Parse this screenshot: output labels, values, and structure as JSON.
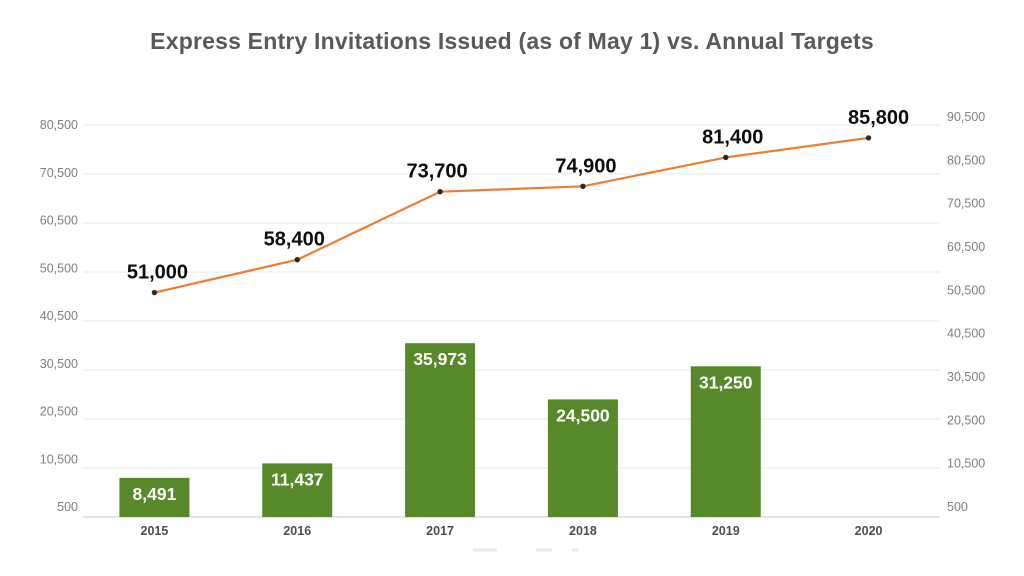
{
  "title": "Express Entry Invitations Issued (as of May 1) vs. Annual Targets",
  "chart_data": {
    "type": "combo-bar-line",
    "categories": [
      "2015",
      "2016",
      "2017",
      "2018",
      "2019",
      "2020"
    ],
    "series": [
      {
        "name": "Invitations Issued (as of May 1)",
        "type": "bar",
        "axis": "left",
        "color": "#57892a",
        "values": [
          8491,
          11437,
          35973,
          24500,
          31250,
          null
        ],
        "labels": [
          "8,491",
          "11,437",
          "35,973",
          "24,500",
          "31,250",
          ""
        ]
      },
      {
        "name": "Annual Targets",
        "type": "line",
        "axis": "right",
        "color": "#ed7d31",
        "marker_color": "#2d2a26",
        "values": [
          51000,
          58400,
          73700,
          74900,
          81400,
          85800
        ],
        "labels": [
          "51,000",
          "58,400",
          "73,700",
          "74,900",
          "81,400",
          "85,800"
        ]
      }
    ],
    "left_axis": {
      "min": 500,
      "max": 80500,
      "step": 10000,
      "tick_labels": [
        "500",
        "10,500",
        "20,500",
        "30,500",
        "40,500",
        "50,500",
        "60,500",
        "70,500",
        "80,500"
      ]
    },
    "right_axis": {
      "min": 500,
      "max": 90500,
      "step": 10000,
      "tick_labels": [
        "500",
        "10,500",
        "20,500",
        "30,500",
        "40,500",
        "50,500",
        "60,500",
        "70,500",
        "80,500",
        "90,500"
      ]
    },
    "grid": true,
    "grid_color": "#e7e7e7",
    "axis_line_color": "#c9c9c9",
    "legend_cropped": true,
    "title_color": "#595959",
    "background": "#ffffff"
  }
}
